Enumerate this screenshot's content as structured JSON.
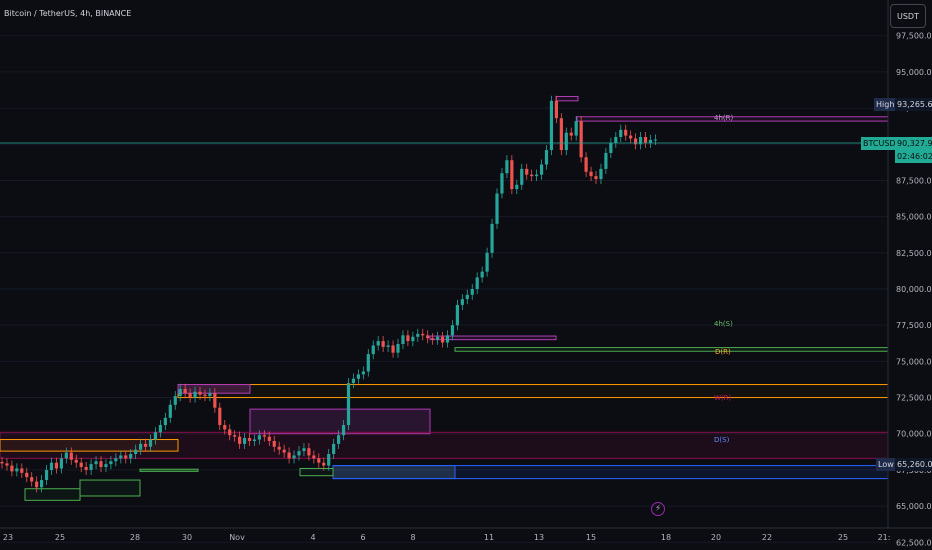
{
  "header": {
    "symbol_title": "Bitcoin / TetherUS, 4h, BINANCE",
    "currency_button": "USDT"
  },
  "price_axis": {
    "ticks": [
      "97,500.00",
      "95,000.00",
      "92,500.00",
      "90,000.00",
      "87,500.00",
      "85,000.00",
      "82,500.00",
      "80,000.00",
      "77,500.00",
      "75,000.00",
      "72,500.00",
      "70,000.00",
      "67,500.00",
      "65,000.00",
      "62,500.00"
    ],
    "high_label": "High",
    "high_value": "93,265.64",
    "last_symbol": "BTCUSDT",
    "last_value": "90,327.98",
    "countdown": "02:46:02",
    "low_label": "Low",
    "low_value": "65,260.00"
  },
  "time_axis": {
    "ticks": [
      "23",
      "25",
      "28",
      "30",
      "Nov",
      "4",
      "6",
      "8",
      "11",
      "13",
      "15",
      "18",
      "20",
      "22",
      "25",
      "21:"
    ]
  },
  "level_labels": {
    "h4_resistance": "4h(R)",
    "h4_support": "4h(S)",
    "d_resistance": "D(R)",
    "w_resistance": "W(R)",
    "d_support": "D(S)"
  },
  "colors": {
    "up": "#26a69a",
    "down": "#ef5350",
    "background": "#0b0d12",
    "magenta": "#b43bb5",
    "green_level": "#4caf50",
    "orange_level": "#ff9800",
    "red_level": "#880e4f",
    "blue_level": "#2962ff"
  },
  "chart_data": {
    "type": "candlestick",
    "interval": "4h",
    "ylim": [
      61000,
      99000
    ],
    "y_ticks": [
      62500,
      65000,
      67500,
      70000,
      72500,
      75000,
      77500,
      80000,
      82500,
      85000,
      87500,
      90000,
      92500,
      95000,
      97500
    ],
    "last_price": 90327.98,
    "high": 93265.64,
    "low": 65260.0,
    "closes": [
      67950,
      67800,
      67400,
      67600,
      67300,
      67000,
      66700,
      66300,
      66800,
      67500,
      68000,
      67600,
      68300,
      68700,
      68200,
      68000,
      67700,
      67500,
      67900,
      68100,
      67700,
      67900,
      68100,
      68300,
      68500,
      68300,
      68600,
      68900,
      69300,
      69100,
      69600,
      70100,
      70600,
      71100,
      72000,
      72600,
      73100,
      72800,
      72500,
      72900,
      72700,
      72600,
      72800,
      71800,
      70600,
      70300,
      69900,
      69800,
      69300,
      69700,
      69500,
      69600,
      69900,
      69800,
      69500,
      69100,
      68900,
      68700,
      68300,
      68500,
      68800,
      69000,
      68500,
      68300,
      68000,
      67800,
      68600,
      69300,
      69900,
      70600,
      73500,
      73800,
      74100,
      74300,
      75500,
      76100,
      76400,
      76000,
      76100,
      75600,
      76200,
      76800,
      76400,
      76700,
      76900,
      76800,
      76600,
      76500,
      76700,
      76300,
      76800,
      77500,
      78900,
      79300,
      79600,
      80000,
      80800,
      81200,
      82500,
      84500,
      86600,
      88000,
      88900,
      86900,
      87200,
      88300,
      87900,
      87800,
      87900,
      88600,
      89600,
      93000,
      91800,
      89600,
      90800,
      90600,
      91600,
      89100,
      88100,
      87800,
      87600,
      88300,
      89400,
      90100,
      90500,
      91000,
      90600,
      90400,
      90000,
      90500,
      90100,
      90300,
      90328
    ]
  }
}
